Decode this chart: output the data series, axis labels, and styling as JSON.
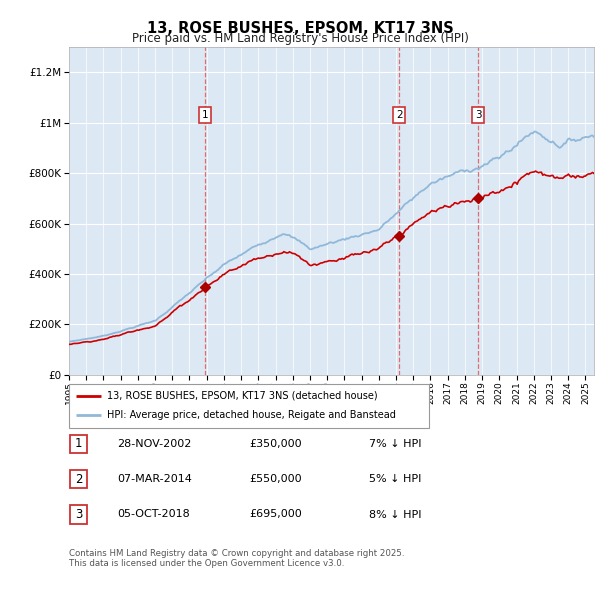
{
  "title": "13, ROSE BUSHES, EPSOM, KT17 3NS",
  "subtitle": "Price paid vs. HM Land Registry's House Price Index (HPI)",
  "legend_line1": "13, ROSE BUSHES, EPSOM, KT17 3NS (detached house)",
  "legend_line2": "HPI: Average price, detached house, Reigate and Banstead",
  "footnote1": "Contains HM Land Registry data © Crown copyright and database right 2025.",
  "footnote2": "This data is licensed under the Open Government Licence v3.0.",
  "sale_points": [
    {
      "num": 1,
      "date": "28-NOV-2002",
      "price": 350000,
      "note": "7% ↓ HPI",
      "x_year": 2002.91
    },
    {
      "num": 2,
      "date": "07-MAR-2014",
      "price": 550000,
      "note": "5% ↓ HPI",
      "x_year": 2014.18
    },
    {
      "num": 3,
      "date": "05-OCT-2018",
      "price": 695000,
      "note": "8% ↓ HPI",
      "x_year": 2018.76
    }
  ],
  "ylim": [
    0,
    1300000
  ],
  "xlim_start": 1995.0,
  "xlim_end": 2025.5,
  "yticks": [
    0,
    200000,
    400000,
    600000,
    800000,
    1000000,
    1200000
  ],
  "xticks": [
    1995,
    1996,
    1997,
    1998,
    1999,
    2000,
    2001,
    2002,
    2003,
    2004,
    2005,
    2006,
    2007,
    2008,
    2009,
    2010,
    2011,
    2012,
    2013,
    2014,
    2015,
    2016,
    2017,
    2018,
    2019,
    2020,
    2021,
    2022,
    2023,
    2024,
    2025
  ],
  "hpi_color": "#90b8d8",
  "price_color": "#cc0000",
  "vline_color": "#dd6060",
  "bg_color": "#dde8f5",
  "fig_bg": "#ffffff",
  "sale_marker_color": "#aa0000",
  "number_box_edge": "#cc3333",
  "legend_border": "#999999",
  "grid_color": "#ffffff"
}
